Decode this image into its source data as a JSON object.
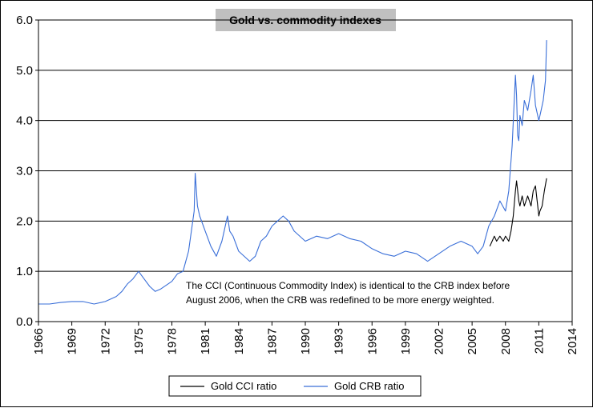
{
  "chart_data": {
    "type": "line",
    "title": "Gold vs. commodity indexes",
    "xlabel": "",
    "ylabel": "",
    "xlim": [
      1966,
      2014
    ],
    "ylim": [
      0,
      6
    ],
    "x_ticks": [
      "1966",
      "1969",
      "1972",
      "1975",
      "1978",
      "1981",
      "1984",
      "1987",
      "1990",
      "1993",
      "1996",
      "1999",
      "2002",
      "2005",
      "2008",
      "2011",
      "2014"
    ],
    "y_ticks": [
      "0.0",
      "1.0",
      "2.0",
      "3.0",
      "4.0",
      "5.0",
      "6.0"
    ],
    "grid": "horizontal",
    "legend_position": "bottom",
    "annotation": [
      "The CCI (Continuous Commodity Index) is identical to the CRB index before",
      "August 2006, when the CRB was redefined to be more energy weighted."
    ],
    "series": [
      {
        "name": "Gold CCI ratio",
        "color": "#000000",
        "x": [
          2006.6,
          2006.8,
          2007.0,
          2007.2,
          2007.5,
          2007.8,
          2008.0,
          2008.3,
          2008.5,
          2008.7,
          2008.9,
          2009.0,
          2009.1,
          2009.2,
          2009.3,
          2009.5,
          2009.7,
          2010.0,
          2010.3,
          2010.5,
          2010.7,
          2011.0,
          2011.1,
          2011.3,
          2011.5,
          2011.7
        ],
        "y": [
          1.5,
          1.6,
          1.7,
          1.6,
          1.7,
          1.6,
          1.7,
          1.6,
          1.8,
          2.1,
          2.6,
          2.8,
          2.6,
          2.4,
          2.3,
          2.5,
          2.3,
          2.5,
          2.3,
          2.6,
          2.7,
          2.1,
          2.2,
          2.3,
          2.6,
          2.85
        ]
      },
      {
        "name": "Gold CRB ratio",
        "color": "#3a6fd8",
        "x": [
          1966.0,
          1967.0,
          1968.0,
          1969.0,
          1970.0,
          1971.0,
          1972.0,
          1973.0,
          1973.5,
          1974.0,
          1974.5,
          1975.0,
          1975.5,
          1976.0,
          1976.5,
          1977.0,
          1978.0,
          1978.5,
          1979.0,
          1979.5,
          1980.0,
          1980.1,
          1980.3,
          1980.5,
          1981.0,
          1981.5,
          1982.0,
          1982.5,
          1983.0,
          1983.2,
          1983.5,
          1984.0,
          1985.0,
          1985.5,
          1986.0,
          1986.5,
          1987.0,
          1987.5,
          1988.0,
          1988.5,
          1989.0,
          1990.0,
          1991.0,
          1992.0,
          1993.0,
          1994.0,
          1995.0,
          1996.0,
          1997.0,
          1998.0,
          1999.0,
          2000.0,
          2001.0,
          2002.0,
          2003.0,
          2004.0,
          2005.0,
          2005.5,
          2006.0,
          2006.5,
          2007.0,
          2007.5,
          2008.0,
          2008.3,
          2008.6,
          2008.9,
          2009.0,
          2009.1,
          2009.2,
          2009.3,
          2009.5,
          2009.7,
          2010.0,
          2010.3,
          2010.5,
          2010.7,
          2011.0,
          2011.2,
          2011.4,
          2011.6,
          2011.7
        ],
        "y": [
          0.35,
          0.35,
          0.38,
          0.4,
          0.4,
          0.35,
          0.4,
          0.5,
          0.6,
          0.75,
          0.85,
          1.0,
          0.85,
          0.7,
          0.6,
          0.65,
          0.8,
          0.95,
          1.0,
          1.4,
          2.2,
          2.95,
          2.3,
          2.1,
          1.8,
          1.5,
          1.3,
          1.6,
          2.1,
          1.8,
          1.7,
          1.4,
          1.2,
          1.3,
          1.6,
          1.7,
          1.9,
          2.0,
          2.1,
          2.0,
          1.8,
          1.6,
          1.7,
          1.65,
          1.75,
          1.65,
          1.6,
          1.45,
          1.35,
          1.3,
          1.4,
          1.35,
          1.2,
          1.35,
          1.5,
          1.6,
          1.5,
          1.35,
          1.5,
          1.9,
          2.1,
          2.4,
          2.2,
          2.6,
          3.5,
          4.9,
          4.5,
          3.7,
          3.6,
          4.1,
          3.9,
          4.4,
          4.2,
          4.6,
          4.9,
          4.3,
          4.0,
          4.2,
          4.4,
          4.8,
          5.6
        ]
      }
    ]
  }
}
